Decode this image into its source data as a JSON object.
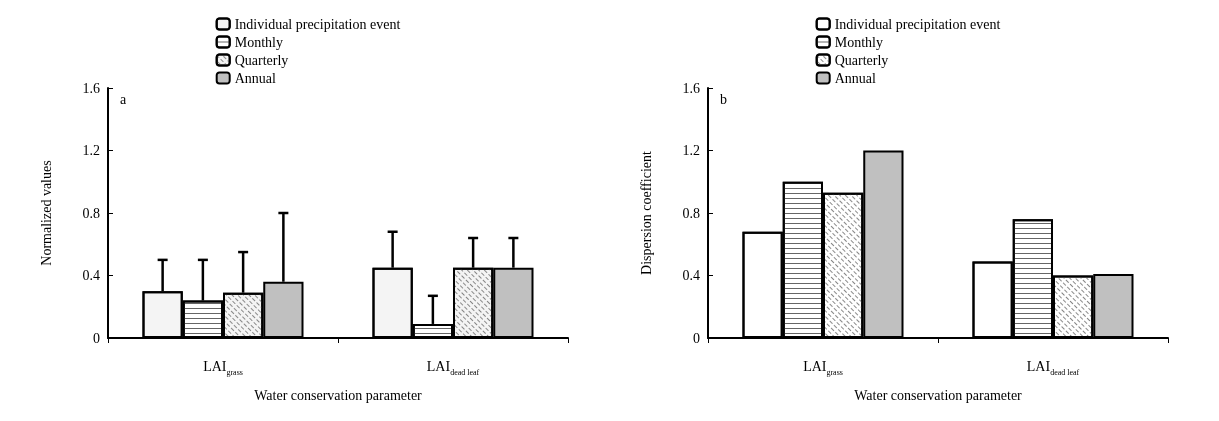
{
  "chart_data": [
    {
      "type": "bar",
      "annotations": [
        "a"
      ],
      "xlabel": "Water conservation parameter",
      "ylabel": "Normalized values",
      "categories": [
        "LAI$_{grass}$",
        "LAI$_{dead leaf}$"
      ],
      "ylim": [
        0,
        1.6
      ],
      "yticks": [
        0,
        0.4,
        0.8,
        1.2,
        1.6
      ],
      "grid": false,
      "legend": "top",
      "series": [
        {
          "name": "Individual precipitation event",
          "color": "#f4f4f4",
          "values": [
            0.3,
            0.45
          ],
          "errors": [
            [
              0.3,
              0.5
            ],
            [
              0.45,
              0.68
            ]
          ]
        },
        {
          "name": "Monthly",
          "color": "#ffffff",
          "values": [
            0.24,
            0.09
          ],
          "errors": [
            [
              0.24,
              0.5
            ],
            [
              0.09,
              0.27
            ]
          ]
        },
        {
          "name": "Quarterly",
          "color": "#f4f4f4",
          "values": [
            0.29,
            0.45
          ],
          "errors": [
            [
              0.29,
              0.55
            ],
            [
              0.45,
              0.64
            ]
          ]
        },
        {
          "name": "Annual",
          "color": "#c0c0c0",
          "values": [
            0.36,
            0.45
          ],
          "errors": [
            [
              0.36,
              0.8
            ],
            [
              0.45,
              0.64
            ]
          ]
        }
      ]
    },
    {
      "type": "bar",
      "annotations": [
        "b"
      ],
      "xlabel": "Water conservation parameter",
      "ylabel": "Dispersion coefficient",
      "categories": [
        "LAI$_{grass}$",
        "LAI$_{dead leaf}$"
      ],
      "ylim": [
        0,
        1.6
      ],
      "yticks": [
        0,
        0.4,
        0.8,
        1.2,
        1.6
      ],
      "grid": false,
      "legend": "top",
      "series": [
        {
          "name": "Individual precipitation event",
          "color": "#ffffff",
          "values": [
            0.68,
            0.49
          ]
        },
        {
          "name": "Monthly",
          "color": "#ffffff",
          "values": [
            1.0,
            0.76
          ]
        },
        {
          "name": "Quarterly",
          "color": "#ffffff",
          "values": [
            0.93,
            0.4
          ]
        },
        {
          "name": "Annual",
          "color": "#c0c0c0",
          "values": [
            1.2,
            0.41
          ]
        }
      ]
    }
  ]
}
